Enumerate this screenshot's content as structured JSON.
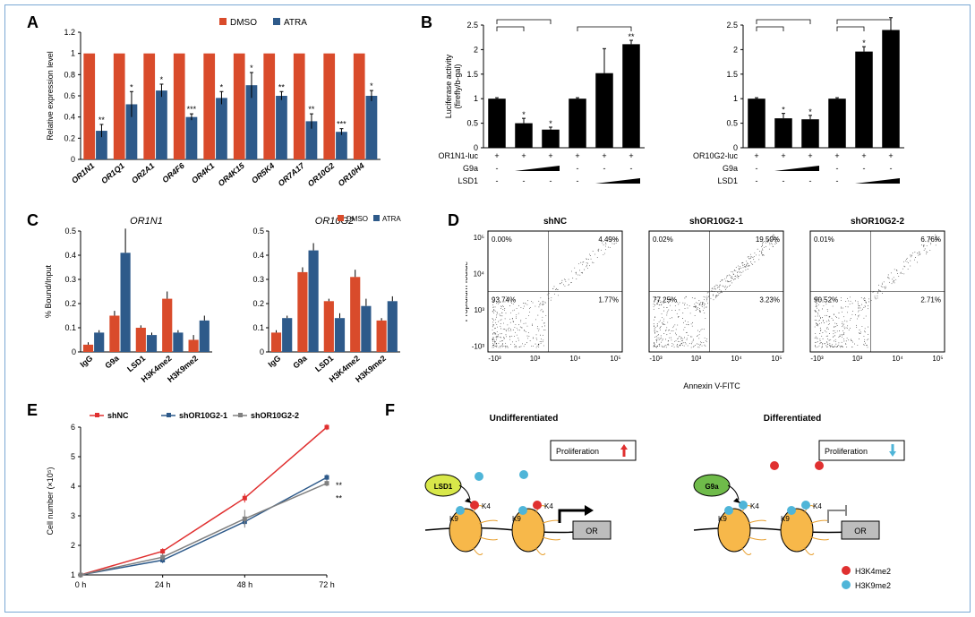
{
  "panelA": {
    "label": "A",
    "legend": [
      "DMSO",
      "ATRA"
    ],
    "legend_colors": [
      "#d94b2b",
      "#2e5a8a"
    ],
    "y_label": "Relative expression level",
    "y_ticks": [
      0,
      0.2,
      0.4,
      0.6,
      0.8,
      1,
      1.2
    ],
    "categories": [
      "OR1N1",
      "OR1Q1",
      "OR2A1",
      "OR4F6",
      "OR4K1",
      "OR4K15",
      "OR5K4",
      "OR7A17",
      "OR10G2",
      "OR10H4"
    ],
    "dmso": [
      1,
      1,
      1,
      1,
      1,
      1,
      1,
      1,
      1,
      1
    ],
    "atra": [
      0.27,
      0.52,
      0.65,
      0.4,
      0.58,
      0.7,
      0.6,
      0.36,
      0.26,
      0.6
    ],
    "atra_err": [
      0.06,
      0.12,
      0.06,
      0.03,
      0.06,
      0.12,
      0.04,
      0.07,
      0.03,
      0.05
    ],
    "sig": [
      "**",
      "*",
      "*",
      "***",
      "*",
      "*",
      "**",
      "**",
      "***",
      "*"
    ],
    "title_fontsize": 10,
    "bar_width": 0.38
  },
  "panelB": {
    "label": "B",
    "y_label": "Luciferase activity\n(firefly/b-gal)",
    "left": {
      "row_labels": [
        "OR1N1-luc",
        "G9a",
        "LSD1"
      ],
      "y_ticks": [
        0,
        0.5,
        1,
        1.5,
        2,
        2.5
      ],
      "values": [
        1,
        0.5,
        0.37,
        1,
        1.52,
        2.11
      ],
      "err": [
        0.02,
        0.1,
        0.05,
        0.02,
        0.5,
        0.08
      ],
      "sig": [
        "",
        "*",
        "*",
        "",
        "",
        "**"
      ],
      "brackets": [
        [
          0,
          1
        ],
        [
          0,
          2
        ],
        [
          3,
          5
        ]
      ]
    },
    "right": {
      "row_labels": [
        "OR10G2-luc",
        "G9a",
        "LSD1"
      ],
      "y_ticks": [
        0,
        0.5,
        1,
        1.5,
        2,
        2.5
      ],
      "values": [
        1,
        0.6,
        0.58,
        1,
        1.96,
        2.4
      ],
      "err": [
        0.02,
        0.1,
        0.08,
        0.02,
        0.1,
        0.25
      ],
      "sig": [
        "",
        "*",
        "*",
        "",
        "*",
        "**"
      ],
      "brackets": [
        [
          0,
          1
        ],
        [
          0,
          2
        ],
        [
          3,
          4
        ],
        [
          3,
          5
        ]
      ]
    },
    "bar_color": "#000000"
  },
  "panelC": {
    "label": "C",
    "legend": [
      "DMSO",
      "ATRA"
    ],
    "legend_colors": [
      "#d94b2b",
      "#2e5a8a"
    ],
    "y_label": "% Bound/Input",
    "categories": [
      "IgG",
      "G9a",
      "LSD1",
      "H3K4me2",
      "H3K9me2"
    ],
    "left": {
      "title": "OR1N1",
      "y_ticks": [
        0,
        0.1,
        0.2,
        0.3,
        0.4,
        0.5
      ],
      "dmso": [
        0.03,
        0.15,
        0.1,
        0.22,
        0.05
      ],
      "atra": [
        0.08,
        0.41,
        0.07,
        0.08,
        0.13
      ],
      "derr": [
        0.01,
        0.02,
        0.01,
        0.03,
        0.02
      ],
      "aerr": [
        0.01,
        0.1,
        0.01,
        0.01,
        0.02
      ]
    },
    "right": {
      "title": "OR10G2",
      "y_ticks": [
        0,
        0.1,
        0.2,
        0.3,
        0.4,
        0.5
      ],
      "dmso": [
        0.08,
        0.33,
        0.21,
        0.31,
        0.13
      ],
      "atra": [
        0.14,
        0.42,
        0.14,
        0.19,
        0.21
      ],
      "derr": [
        0.01,
        0.02,
        0.01,
        0.03,
        0.01
      ],
      "aerr": [
        0.01,
        0.03,
        0.02,
        0.03,
        0.02
      ]
    }
  },
  "panelD": {
    "label": "D",
    "x_label": "Annexin V-FITC",
    "y_label": "Propidium Iodide",
    "axis_ticks": [
      "-10³",
      "10³",
      "10⁴",
      "10⁵"
    ],
    "plots": [
      {
        "title": "shNC",
        "q": [
          "0.00%",
          "4.49%",
          "93.74%",
          "1.77%"
        ]
      },
      {
        "title": "shOR10G2-1",
        "q": [
          "0.02%",
          "19.50%",
          "77.25%",
          "3.23%"
        ]
      },
      {
        "title": "shOR10G2-2",
        "q": [
          "0.01%",
          "6.76%",
          "90.52%",
          "2.71%"
        ]
      }
    ]
  },
  "panelE": {
    "label": "E",
    "y_label": "Cell number (×10⁵)",
    "x_ticks": [
      "0 h",
      "24 h",
      "48 h",
      "72 h"
    ],
    "y_ticks": [
      1,
      2,
      3,
      4,
      5,
      6
    ],
    "series": [
      {
        "name": "shNC",
        "color": "#e03030",
        "values": [
          1,
          1.8,
          3.6,
          6.0
        ],
        "err": [
          0,
          0.1,
          0.15,
          0.1
        ]
      },
      {
        "name": "shOR10G2-1",
        "color": "#2e5a8a",
        "values": [
          1,
          1.5,
          2.8,
          4.3
        ],
        "err": [
          0,
          0.1,
          0.12,
          0.1
        ],
        "sig": "**"
      },
      {
        "name": "shOR10G2-2",
        "color": "#808080",
        "values": [
          1,
          1.6,
          2.9,
          4.1
        ],
        "err": [
          0,
          0.12,
          0.3,
          0.1
        ],
        "sig": "**"
      }
    ]
  },
  "panelF": {
    "label": "F",
    "left_title": "Undifferentiated",
    "right_title": "Differentiated",
    "prolif_up": "Proliferation ",
    "prolif_down": "Proliferation ",
    "or_label": "OR",
    "lsd1": "LSD1",
    "g9a": "G9a",
    "k4": "K4",
    "k9": "K9",
    "legend": [
      {
        "color": "#e03030",
        "label": "H3K4me2"
      },
      {
        "color": "#4fb5d8",
        "label": "H3K9me2"
      }
    ]
  }
}
